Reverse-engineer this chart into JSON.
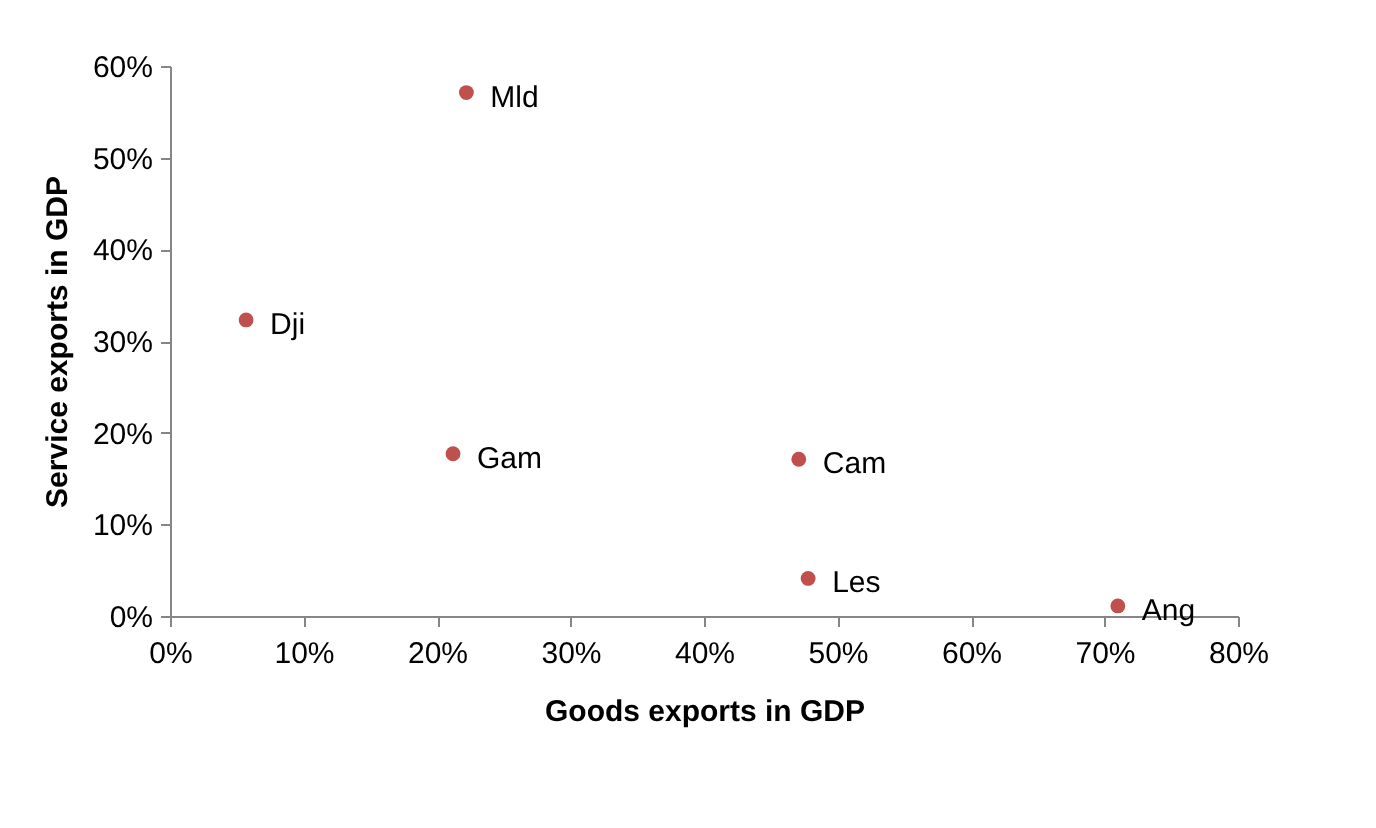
{
  "chart_data": {
    "type": "scatter",
    "xlabel": "Goods exports in GDP",
    "ylabel": "Service exports in GDP",
    "x": [
      22.2,
      5.7,
      21.2,
      47.1,
      47.8,
      71
    ],
    "values": [
      57.1,
      32.3,
      17.7,
      17.1,
      4.1,
      1.1
    ],
    "color": "#c0504d",
    "marker": "circle",
    "grid": false,
    "legend": false,
    "xlim": [
      0,
      80
    ],
    "ylim": [
      0,
      60
    ],
    "xticks": [
      {
        "value": 0,
        "label": "0%"
      },
      {
        "value": 10,
        "label": "10%"
      },
      {
        "value": 20,
        "label": "20%"
      },
      {
        "value": 30,
        "label": "30%"
      },
      {
        "value": 40,
        "label": "40%"
      },
      {
        "value": 50,
        "label": "50%"
      },
      {
        "value": 60,
        "label": "60%"
      },
      {
        "value": 70,
        "label": "70%"
      },
      {
        "value": 80,
        "label": "80%"
      }
    ],
    "yticks": [
      {
        "value": 0,
        "label": "0%"
      },
      {
        "value": 10,
        "label": "10%"
      },
      {
        "value": 20,
        "label": "20%"
      },
      {
        "value": 30,
        "label": "30%"
      },
      {
        "value": 40,
        "label": "40%"
      },
      {
        "value": 50,
        "label": "50%"
      },
      {
        "value": 60,
        "label": "60%"
      }
    ],
    "annotations": [
      {
        "text": "Mld",
        "x": 22.2,
        "y": 57.1
      },
      {
        "text": "Dji",
        "x": 5.7,
        "y": 32.3
      },
      {
        "text": "Gam",
        "x": 21.2,
        "y": 17.7
      },
      {
        "text": "Cam",
        "x": 47.1,
        "y": 17.1
      },
      {
        "text": "Les",
        "x": 47.8,
        "y": 4.1
      },
      {
        "text": "Ang",
        "x": 71,
        "y": 1.1
      }
    ]
  }
}
